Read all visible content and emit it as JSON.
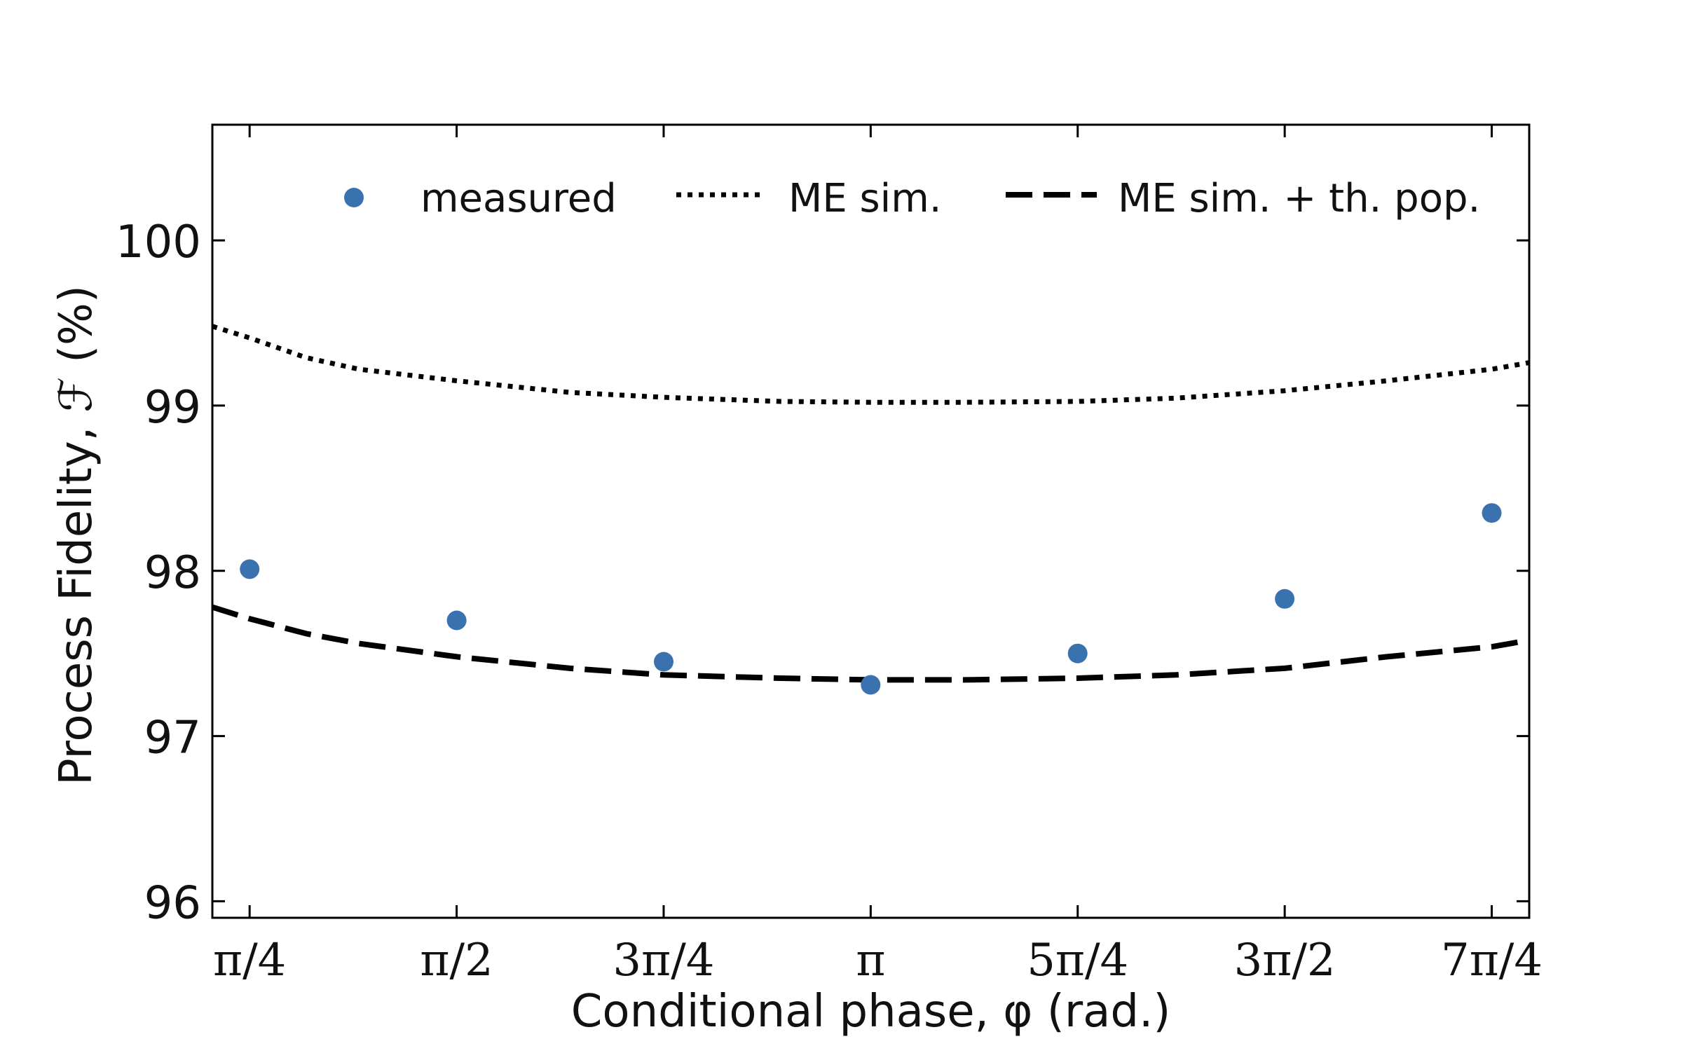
{
  "chart_data": {
    "type": "scatter",
    "title": "",
    "xlabel": "Conditional phase, φ (rad.)",
    "ylabel": "Process Fidelity, ℱ (%)",
    "x_tick_values": [
      0.7853982,
      1.5707963,
      2.3561945,
      3.1415927,
      3.9269908,
      4.712389,
      5.4977871
    ],
    "x_tick_labels": [
      "π/4",
      "π/2",
      "3π/4",
      "π",
      "5π/4",
      "3π/2",
      "7π/4"
    ],
    "y_ticks": [
      96,
      97,
      98,
      99,
      100
    ],
    "y_tick_labels": [
      "96",
      "97",
      "98",
      "99",
      "100"
    ],
    "xlim": [
      0.644,
      5.64
    ],
    "ylim": [
      95.9,
      100.7
    ],
    "grid": false,
    "legend_position": "top",
    "series": [
      {
        "name": "measured",
        "kind": "scatter",
        "color": "#3a72b0",
        "x": [
          0.7853982,
          1.5707963,
          2.3561945,
          3.1415927,
          3.9269908,
          4.712389,
          5.4977871
        ],
        "y": [
          98.01,
          97.7,
          97.45,
          97.31,
          97.5,
          97.83,
          98.35
        ]
      },
      {
        "name": "ME sim.",
        "kind": "line",
        "style": "dotted",
        "color": "#000000",
        "x": [
          0.644,
          0.785,
          1.0,
          1.2,
          1.571,
          2.0,
          2.356,
          2.8,
          3.142,
          3.5,
          3.927,
          4.3,
          4.712,
          5.1,
          5.498,
          5.64
        ],
        "y": [
          99.48,
          99.41,
          99.29,
          99.22,
          99.15,
          99.08,
          99.05,
          99.025,
          99.02,
          99.02,
          99.025,
          99.045,
          99.09,
          99.15,
          99.22,
          99.26
        ]
      },
      {
        "name": "ME sim. + th. pop.",
        "kind": "line",
        "style": "dashed",
        "color": "#000000",
        "x": [
          0.644,
          0.785,
          1.0,
          1.2,
          1.571,
          2.0,
          2.356,
          2.8,
          3.142,
          3.5,
          3.927,
          4.3,
          4.712,
          5.1,
          5.498,
          5.64
        ],
        "y": [
          97.78,
          97.71,
          97.62,
          97.56,
          97.48,
          97.41,
          97.37,
          97.35,
          97.34,
          97.34,
          97.35,
          97.37,
          97.41,
          97.48,
          97.54,
          97.58
        ]
      }
    ]
  }
}
